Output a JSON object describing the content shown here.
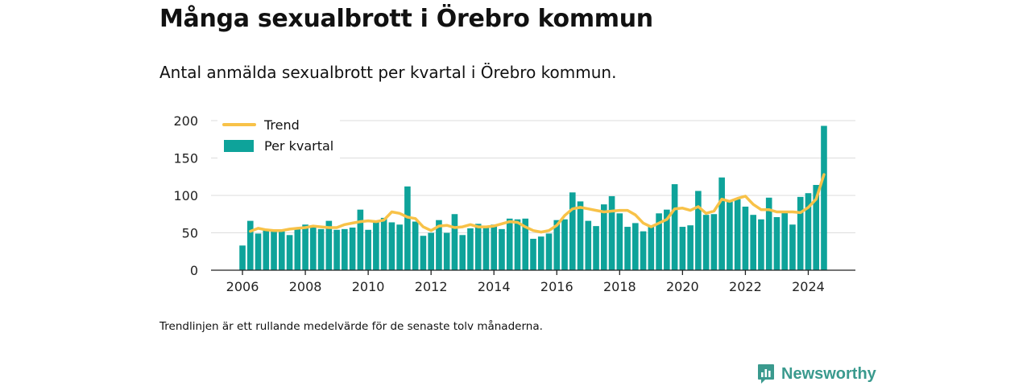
{
  "title": "Många sexualbrott i Örebro kommun",
  "subtitle": "Antal anmälda sexualbrott per kvartal i Örebro kommun.",
  "footnote": "Trendlinjen är ett rullande medelvärde för de senaste tolv månaderna.",
  "brand": "Newsworthy",
  "colors": {
    "bar": "#0ea39a",
    "trend": "#f8c248",
    "grid": "#dddddd",
    "axis": "#222222",
    "brand": "#3a9a8e"
  },
  "chart_data": {
    "type": "bar",
    "x_start": 2006,
    "xlim": [
      2005,
      2025.5
    ],
    "ylim": [
      0,
      200
    ],
    "yticks": [
      0,
      50,
      100,
      150,
      200
    ],
    "xticks": [
      2006,
      2008,
      2010,
      2012,
      2014,
      2016,
      2018,
      2020,
      2022,
      2024
    ],
    "grid": true,
    "legend_position": "top-left",
    "series": [
      {
        "name": "Per kvartal",
        "type": "bar",
        "values": [
          33,
          66,
          49,
          54,
          54,
          52,
          47,
          56,
          61,
          60,
          55,
          66,
          54,
          55,
          57,
          81,
          54,
          64,
          70,
          64,
          61,
          112,
          65,
          46,
          50,
          67,
          50,
          75,
          47,
          56,
          62,
          58,
          61,
          55,
          69,
          68,
          69,
          42,
          45,
          49,
          67,
          68,
          104,
          92,
          66,
          59,
          88,
          99,
          76,
          58,
          63,
          52,
          59,
          76,
          81,
          115,
          58,
          60,
          106,
          74,
          75,
          124,
          92,
          95,
          85,
          74,
          68,
          97,
          71,
          78,
          61,
          98,
          103,
          114,
          193
        ]
      },
      {
        "name": "Trend",
        "type": "line",
        "values": [
          52,
          56,
          54,
          53,
          53,
          55,
          56,
          57,
          59,
          58,
          57,
          57,
          61,
          63,
          65,
          66,
          65,
          67,
          78,
          76,
          71,
          69,
          58,
          53,
          59,
          60,
          57,
          58,
          61,
          58,
          58,
          59,
          62,
          65,
          64,
          58,
          53,
          51,
          53,
          60,
          73,
          82,
          84,
          82,
          80,
          78,
          79,
          80,
          80,
          74,
          63,
          58,
          63,
          68,
          82,
          83,
          80,
          85,
          76,
          79,
          95,
          92,
          96,
          99,
          88,
          81,
          81,
          78,
          78,
          78,
          77,
          84,
          95,
          128
        ]
      }
    ]
  }
}
